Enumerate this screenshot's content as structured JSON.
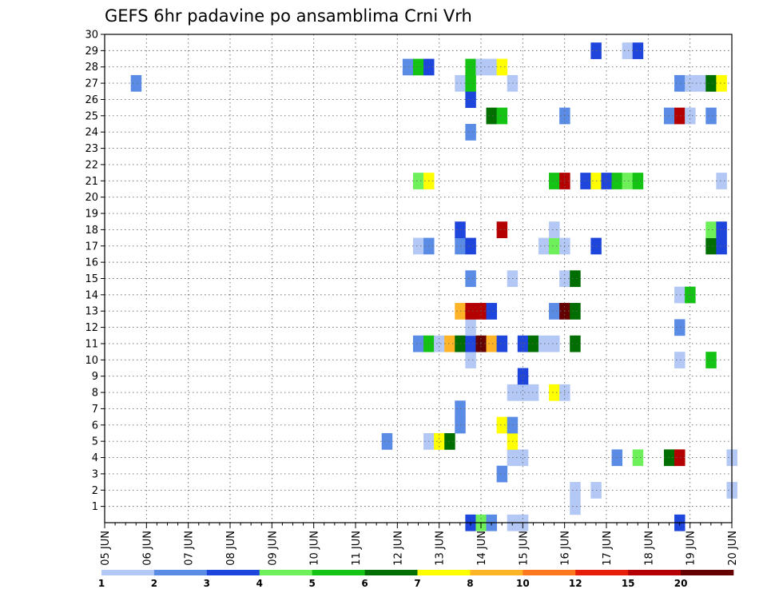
{
  "chart_data": {
    "type": "heatmap",
    "title": "GEFS 6hr padavine po ansamblima Crni Vrh",
    "x_tick_labels": [
      "05 JUN",
      "06 JUN",
      "07 JUN",
      "08 JUN",
      "09 JUN",
      "10 JUN",
      "11 JUN",
      "12 JUN",
      "13 JUN",
      "14 JUN",
      "15 JUN",
      "16 JUN",
      "17 JUN",
      "18 JUN",
      "19 JUN",
      "20 JUN"
    ],
    "y_tick_labels": [
      "1",
      "2",
      "3",
      "4",
      "5",
      "6",
      "7",
      "8",
      "9",
      "10",
      "11",
      "12",
      "13",
      "14",
      "15",
      "16",
      "17",
      "18",
      "19",
      "20",
      "21",
      "22",
      "23",
      "24",
      "25",
      "26",
      "27",
      "28",
      "29",
      "30"
    ],
    "x_range": [
      "05 JUN 00",
      "20 JUN 00"
    ],
    "y_range": [
      0,
      30
    ],
    "grid": "dotted",
    "levels": [
      "1",
      "2",
      "3",
      "4",
      "5",
      "6",
      "7",
      "8",
      "10",
      "12",
      "15",
      "20"
    ],
    "level_colors": [
      "#b4c8f5",
      "#5a8ce6",
      "#1e46dc",
      "#6ef05a",
      "#14c314",
      "#006e00",
      "#ffff00",
      "#ffb428",
      "#ff781e",
      "#e61e0a",
      "#b40000",
      "#640000"
    ],
    "cell_time_step": "6h",
    "cells": [
      {
        "member": 0,
        "t": "13 JUN 18",
        "v": "3"
      },
      {
        "member": 0,
        "t": "14 JUN 00",
        "v": "4"
      },
      {
        "member": 0,
        "t": "14 JUN 06",
        "v": "2"
      },
      {
        "member": 0,
        "t": "14 JUN 18",
        "v": "1"
      },
      {
        "member": 0,
        "t": "15 JUN 00",
        "v": "1"
      },
      {
        "member": 0,
        "t": "18 JUN 18",
        "v": "3"
      },
      {
        "member": 1,
        "t": "16 JUN 06",
        "v": "1"
      },
      {
        "member": 2,
        "t": "16 JUN 06",
        "v": "1"
      },
      {
        "member": 2,
        "t": "16 JUN 18",
        "v": "1"
      },
      {
        "member": 2,
        "t": "20 JUN 00",
        "v": "1"
      },
      {
        "member": 3,
        "t": "14 JUN 12",
        "v": "2"
      },
      {
        "member": 4,
        "t": "14 JUN 18",
        "v": "1"
      },
      {
        "member": 4,
        "t": "15 JUN 00",
        "v": "1"
      },
      {
        "member": 4,
        "t": "17 JUN 06",
        "v": "2"
      },
      {
        "member": 4,
        "t": "17 JUN 18",
        "v": "4"
      },
      {
        "member": 4,
        "t": "18 JUN 12",
        "v": "6"
      },
      {
        "member": 4,
        "t": "18 JUN 18",
        "v": "15"
      },
      {
        "member": 4,
        "t": "20 JUN 00",
        "v": "1"
      },
      {
        "member": 5,
        "t": "11 JUN 18",
        "v": "2"
      },
      {
        "member": 5,
        "t": "12 JUN 18",
        "v": "1"
      },
      {
        "member": 5,
        "t": "13 JUN 00",
        "v": "7"
      },
      {
        "member": 5,
        "t": "13 JUN 06",
        "v": "6"
      },
      {
        "member": 5,
        "t": "14 JUN 18",
        "v": "7"
      },
      {
        "member": 6,
        "t": "13 JUN 12",
        "v": "2"
      },
      {
        "member": 6,
        "t": "14 JUN 12",
        "v": "7"
      },
      {
        "member": 6,
        "t": "14 JUN 18",
        "v": "2"
      },
      {
        "member": 7,
        "t": "13 JUN 12",
        "v": "2"
      },
      {
        "member": 8,
        "t": "14 JUN 18",
        "v": "1"
      },
      {
        "member": 8,
        "t": "15 JUN 00",
        "v": "1"
      },
      {
        "member": 8,
        "t": "15 JUN 06",
        "v": "1"
      },
      {
        "member": 8,
        "t": "15 JUN 18",
        "v": "7"
      },
      {
        "member": 8,
        "t": "16 JUN 00",
        "v": "1"
      },
      {
        "member": 9,
        "t": "15 JUN 00",
        "v": "3"
      },
      {
        "member": 10,
        "t": "13 JUN 18",
        "v": "1"
      },
      {
        "member": 10,
        "t": "18 JUN 18",
        "v": "1"
      },
      {
        "member": 10,
        "t": "19 JUN 12",
        "v": "5"
      },
      {
        "member": 11,
        "t": "12 JUN 12",
        "v": "2"
      },
      {
        "member": 11,
        "t": "12 JUN 18",
        "v": "5"
      },
      {
        "member": 11,
        "t": "13 JUN 00",
        "v": "1"
      },
      {
        "member": 11,
        "t": "13 JUN 06",
        "v": "8"
      },
      {
        "member": 11,
        "t": "13 JUN 12",
        "v": "6"
      },
      {
        "member": 11,
        "t": "13 JUN 18",
        "v": "3"
      },
      {
        "member": 11,
        "t": "14 JUN 00",
        "v": "20"
      },
      {
        "member": 11,
        "t": "14 JUN 06",
        "v": "8"
      },
      {
        "member": 11,
        "t": "14 JUN 12",
        "v": "3"
      },
      {
        "member": 11,
        "t": "15 JUN 00",
        "v": "3"
      },
      {
        "member": 11,
        "t": "15 JUN 06",
        "v": "6"
      },
      {
        "member": 11,
        "t": "15 JUN 12",
        "v": "1"
      },
      {
        "member": 11,
        "t": "15 JUN 18",
        "v": "1"
      },
      {
        "member": 11,
        "t": "16 JUN 06",
        "v": "6"
      },
      {
        "member": 12,
        "t": "13 JUN 18",
        "v": "1"
      },
      {
        "member": 12,
        "t": "18 JUN 18",
        "v": "2"
      },
      {
        "member": 13,
        "t": "13 JUN 12",
        "v": "8"
      },
      {
        "member": 13,
        "t": "13 JUN 18",
        "v": "15"
      },
      {
        "member": 13,
        "t": "14 JUN 00",
        "v": "15"
      },
      {
        "member": 13,
        "t": "14 JUN 06",
        "v": "3"
      },
      {
        "member": 13,
        "t": "15 JUN 18",
        "v": "2"
      },
      {
        "member": 13,
        "t": "16 JUN 00",
        "v": "20"
      },
      {
        "member": 13,
        "t": "16 JUN 06",
        "v": "6"
      },
      {
        "member": 14,
        "t": "18 JUN 18",
        "v": "1"
      },
      {
        "member": 14,
        "t": "19 JUN 00",
        "v": "5"
      },
      {
        "member": 15,
        "t": "13 JUN 18",
        "v": "2"
      },
      {
        "member": 15,
        "t": "14 JUN 18",
        "v": "1"
      },
      {
        "member": 15,
        "t": "16 JUN 00",
        "v": "1"
      },
      {
        "member": 15,
        "t": "16 JUN 06",
        "v": "6"
      },
      {
        "member": 17,
        "t": "12 JUN 12",
        "v": "1"
      },
      {
        "member": 17,
        "t": "12 JUN 18",
        "v": "2"
      },
      {
        "member": 17,
        "t": "13 JUN 12",
        "v": "2"
      },
      {
        "member": 17,
        "t": "13 JUN 18",
        "v": "3"
      },
      {
        "member": 17,
        "t": "15 JUN 12",
        "v": "1"
      },
      {
        "member": 17,
        "t": "15 JUN 18",
        "v": "4"
      },
      {
        "member": 17,
        "t": "16 JUN 00",
        "v": "1"
      },
      {
        "member": 17,
        "t": "16 JUN 18",
        "v": "3"
      },
      {
        "member": 17,
        "t": "19 JUN 12",
        "v": "6"
      },
      {
        "member": 17,
        "t": "19 JUN 18",
        "v": "3"
      },
      {
        "member": 18,
        "t": "13 JUN 12",
        "v": "3"
      },
      {
        "member": 18,
        "t": "14 JUN 12",
        "v": "15"
      },
      {
        "member": 18,
        "t": "15 JUN 18",
        "v": "1"
      },
      {
        "member": 18,
        "t": "19 JUN 12",
        "v": "4"
      },
      {
        "member": 18,
        "t": "19 JUN 18",
        "v": "3"
      },
      {
        "member": 21,
        "t": "12 JUN 12",
        "v": "4"
      },
      {
        "member": 21,
        "t": "12 JUN 18",
        "v": "7"
      },
      {
        "member": 21,
        "t": "15 JUN 18",
        "v": "5"
      },
      {
        "member": 21,
        "t": "16 JUN 00",
        "v": "15"
      },
      {
        "member": 21,
        "t": "16 JUN 12",
        "v": "3"
      },
      {
        "member": 21,
        "t": "16 JUN 18",
        "v": "7"
      },
      {
        "member": 21,
        "t": "17 JUN 00",
        "v": "3"
      },
      {
        "member": 21,
        "t": "17 JUN 06",
        "v": "5"
      },
      {
        "member": 21,
        "t": "17 JUN 12",
        "v": "4"
      },
      {
        "member": 21,
        "t": "17 JUN 18",
        "v": "5"
      },
      {
        "member": 21,
        "t": "19 JUN 18",
        "v": "1"
      },
      {
        "member": 24,
        "t": "13 JUN 18",
        "v": "2"
      },
      {
        "member": 25,
        "t": "14 JUN 06",
        "v": "6"
      },
      {
        "member": 25,
        "t": "14 JUN 12",
        "v": "5"
      },
      {
        "member": 25,
        "t": "16 JUN 00",
        "v": "2"
      },
      {
        "member": 25,
        "t": "18 JUN 12",
        "v": "2"
      },
      {
        "member": 25,
        "t": "18 JUN 18",
        "v": "15"
      },
      {
        "member": 25,
        "t": "19 JUN 00",
        "v": "1"
      },
      {
        "member": 25,
        "t": "19 JUN 12",
        "v": "2"
      },
      {
        "member": 26,
        "t": "13 JUN 18",
        "v": "3"
      },
      {
        "member": 27,
        "t": "05 JUN 18",
        "v": "2"
      },
      {
        "member": 27,
        "t": "13 JUN 12",
        "v": "1"
      },
      {
        "member": 27,
        "t": "13 JUN 18",
        "v": "5"
      },
      {
        "member": 27,
        "t": "14 JUN 18",
        "v": "1"
      },
      {
        "member": 27,
        "t": "18 JUN 18",
        "v": "2"
      },
      {
        "member": 27,
        "t": "19 JUN 00",
        "v": "1"
      },
      {
        "member": 27,
        "t": "19 JUN 06",
        "v": "1"
      },
      {
        "member": 27,
        "t": "19 JUN 12",
        "v": "6"
      },
      {
        "member": 27,
        "t": "19 JUN 18",
        "v": "7"
      },
      {
        "member": 28,
        "t": "12 JUN 06",
        "v": "2"
      },
      {
        "member": 28,
        "t": "12 JUN 12",
        "v": "5"
      },
      {
        "member": 28,
        "t": "12 JUN 18",
        "v": "3"
      },
      {
        "member": 28,
        "t": "13 JUN 18",
        "v": "5"
      },
      {
        "member": 28,
        "t": "14 JUN 00",
        "v": "1"
      },
      {
        "member": 28,
        "t": "14 JUN 06",
        "v": "1"
      },
      {
        "member": 28,
        "t": "14 JUN 12",
        "v": "7"
      },
      {
        "member": 29,
        "t": "16 JUN 18",
        "v": "3"
      },
      {
        "member": 29,
        "t": "17 JUN 12",
        "v": "1"
      },
      {
        "member": 29,
        "t": "17 JUN 18",
        "v": "3"
      }
    ]
  }
}
